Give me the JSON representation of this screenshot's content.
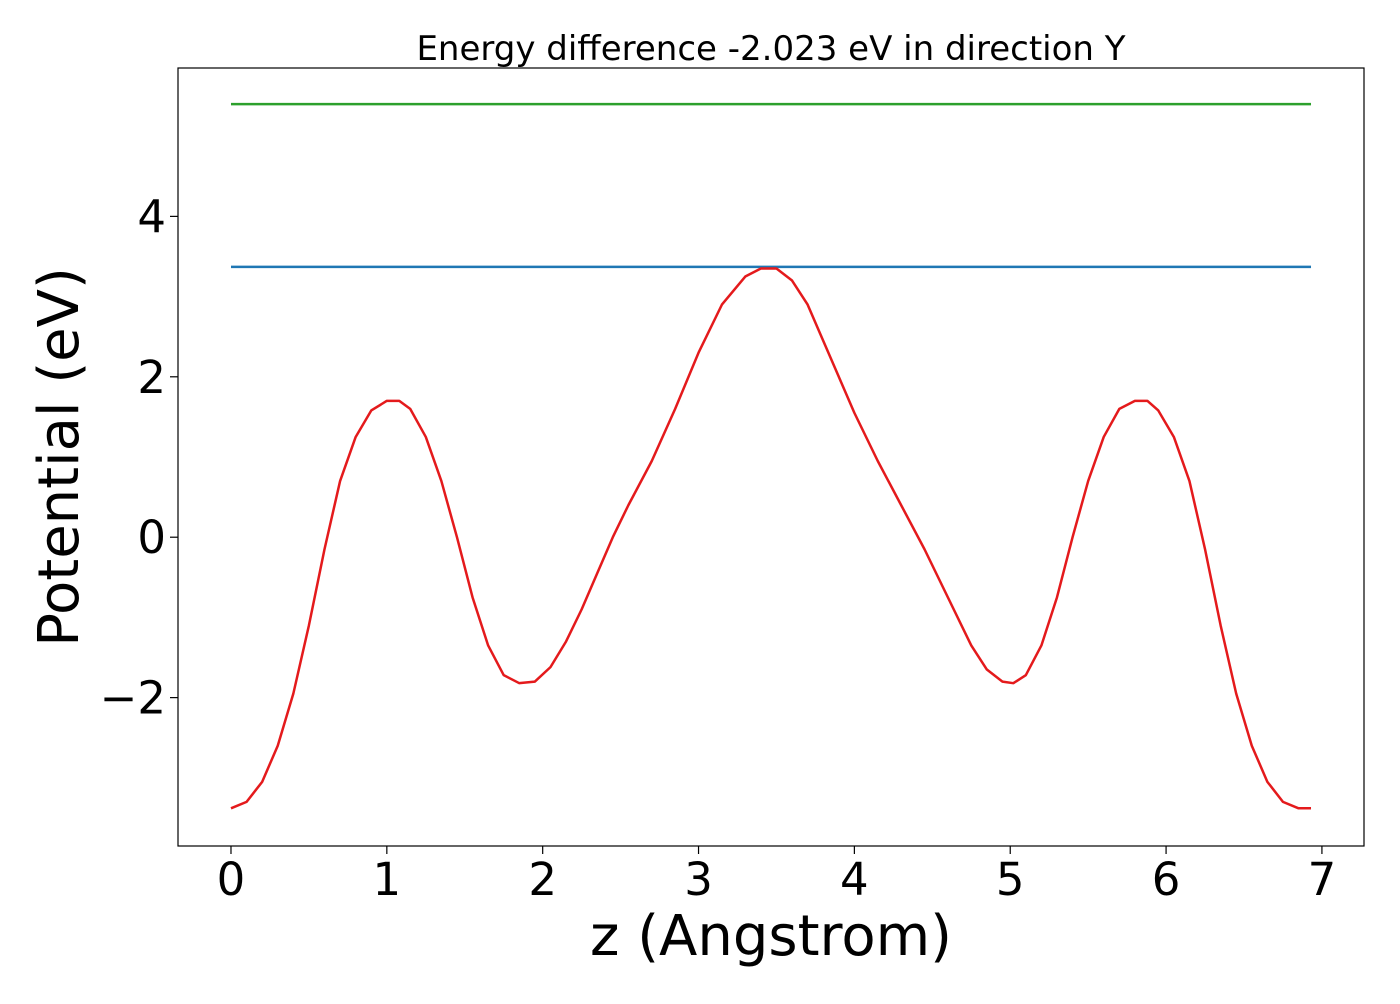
{
  "chart_data": {
    "type": "line",
    "title": "Energy difference -2.023 eV in direction Y",
    "xlabel": "z (Angstrom)",
    "ylabel": "Potential (eV)",
    "xlim": [
      -0.34,
      7.27
    ],
    "ylim": [
      -3.85,
      5.85
    ],
    "xticks": [
      0,
      1,
      2,
      3,
      4,
      5,
      6,
      7
    ],
    "xtick_labels": [
      "0",
      "1",
      "2",
      "3",
      "4",
      "5",
      "6",
      "7"
    ],
    "yticks": [
      -2,
      0,
      2,
      4
    ],
    "ytick_labels": [
      "−2",
      "0",
      "2",
      "4"
    ],
    "grid": false,
    "legend": "none",
    "series": [
      {
        "color": "#2ca02c",
        "x": [
          0.0,
          6.93
        ],
        "y": [
          5.4,
          5.4
        ]
      },
      {
        "color": "#1f77b4",
        "x": [
          0.0,
          6.93
        ],
        "y": [
          3.37,
          3.37
        ]
      },
      {
        "color": "#e41a1c",
        "x": [
          0.0,
          0.1,
          0.2,
          0.3,
          0.4,
          0.5,
          0.6,
          0.7,
          0.8,
          0.9,
          1.0,
          1.08,
          1.15,
          1.25,
          1.35,
          1.45,
          1.55,
          1.65,
          1.75,
          1.85,
          1.95,
          2.05,
          2.15,
          2.25,
          2.35,
          2.45,
          2.55,
          2.7,
          2.85,
          3.0,
          3.15,
          3.3,
          3.4,
          3.5,
          3.6,
          3.7,
          3.8,
          3.9,
          4.0,
          4.15,
          4.3,
          4.45,
          4.6,
          4.75,
          4.85,
          4.95,
          5.02,
          5.1,
          5.2,
          5.3,
          5.4,
          5.5,
          5.6,
          5.7,
          5.8,
          5.88,
          5.95,
          6.05,
          6.15,
          6.25,
          6.35,
          6.45,
          6.55,
          6.65,
          6.75,
          6.85,
          6.93
        ],
        "y": [
          -3.38,
          -3.3,
          -3.05,
          -2.6,
          -1.95,
          -1.1,
          -0.15,
          0.7,
          1.25,
          1.58,
          1.7,
          1.7,
          1.6,
          1.25,
          0.7,
          0.0,
          -0.75,
          -1.35,
          -1.72,
          -1.82,
          -1.8,
          -1.62,
          -1.3,
          -0.9,
          -0.45,
          0.0,
          0.4,
          0.95,
          1.6,
          2.3,
          2.9,
          3.25,
          3.35,
          3.35,
          3.2,
          2.9,
          2.45,
          2.0,
          1.55,
          0.95,
          0.4,
          -0.15,
          -0.75,
          -1.35,
          -1.65,
          -1.8,
          -1.82,
          -1.72,
          -1.35,
          -0.75,
          0.0,
          0.7,
          1.25,
          1.6,
          1.7,
          1.7,
          1.58,
          1.25,
          0.7,
          -0.15,
          -1.1,
          -1.95,
          -2.6,
          -3.05,
          -3.3,
          -3.38,
          -3.38
        ]
      }
    ]
  }
}
